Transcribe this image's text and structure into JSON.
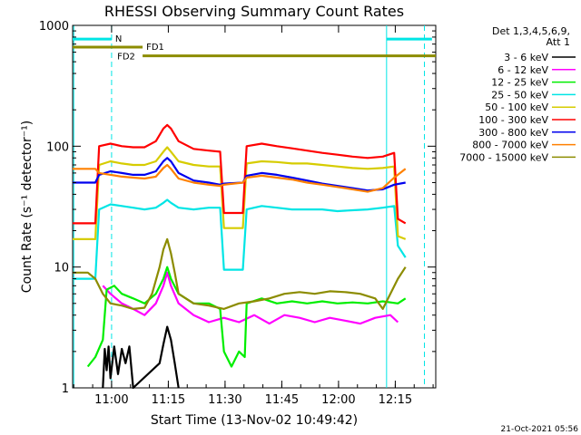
{
  "chart_data": {
    "type": "line",
    "title": "RHESSI Observing Summary Count Rates",
    "xlabel": "Start Time (13-Nov-02 10:49:42)",
    "ylabel": "Count Rate (s⁻¹ detector⁻¹)",
    "ylim": [
      1,
      1000
    ],
    "xlim": [
      0,
      96
    ],
    "x_unit": "minutes after 10:49:42",
    "yscale": "log",
    "x_ticks": [
      {
        "label": "11:00",
        "value": 10.3
      },
      {
        "label": "11:15",
        "value": 25.3
      },
      {
        "label": "11:30",
        "value": 40.3
      },
      {
        "label": "11:45",
        "value": 55.3
      },
      {
        "label": "12:00",
        "value": 70.3
      },
      {
        "label": "12:15",
        "value": 85.3
      }
    ],
    "y_ticks": [
      {
        "label": "1",
        "value": 1
      },
      {
        "label": "10",
        "value": 10
      },
      {
        "label": "100",
        "value": 100
      },
      {
        "label": "1000",
        "value": 1000
      }
    ],
    "legend_header": [
      "Det 1,3,4,5,6,9,",
      "Att 1"
    ],
    "legend_placement": "right",
    "footer_date": "21-Oct-2021 05:56",
    "series": [
      {
        "name": "3 - 6 keV",
        "color": "#000000",
        "points": [
          [
            8,
            1
          ],
          [
            8.5,
            2.1
          ],
          [
            9,
            1.4
          ],
          [
            9.5,
            2.2
          ],
          [
            10,
            1.2
          ],
          [
            11,
            2.2
          ],
          [
            12,
            1.3
          ],
          [
            13,
            2.1
          ],
          [
            14,
            1.6
          ],
          [
            15,
            2.2
          ],
          [
            16,
            1.0
          ],
          [
            23,
            1.6
          ],
          [
            24,
            2.3
          ],
          [
            25,
            3.2
          ],
          [
            26,
            2.5
          ],
          [
            27,
            1.6
          ],
          [
            28,
            1.0
          ]
        ]
      },
      {
        "name": "6 - 12 keV",
        "color": "#ff00ff",
        "points": [
          [
            8,
            7
          ],
          [
            10,
            6
          ],
          [
            13,
            5
          ],
          [
            16,
            4.5
          ],
          [
            19,
            4
          ],
          [
            22,
            5
          ],
          [
            24,
            7
          ],
          [
            25,
            9
          ],
          [
            26,
            7
          ],
          [
            28,
            5
          ],
          [
            32,
            4
          ],
          [
            36,
            3.5
          ],
          [
            40,
            3.8
          ],
          [
            44,
            3.5
          ],
          [
            48,
            4
          ],
          [
            52,
            3.4
          ],
          [
            56,
            4
          ],
          [
            60,
            3.8
          ],
          [
            64,
            3.5
          ],
          [
            68,
            3.8
          ],
          [
            72,
            3.6
          ],
          [
            76,
            3.4
          ],
          [
            80,
            3.8
          ],
          [
            84,
            4
          ],
          [
            86,
            3.5
          ]
        ]
      },
      {
        "name": "12 - 25 keV",
        "color": "#00ee00",
        "points": [
          [
            4,
            1.5
          ],
          [
            6,
            1.8
          ],
          [
            8,
            2.5
          ],
          [
            9,
            6.5
          ],
          [
            11,
            7
          ],
          [
            13,
            6
          ],
          [
            16,
            5.5
          ],
          [
            19,
            5
          ],
          [
            22,
            6
          ],
          [
            24,
            8
          ],
          [
            25,
            10
          ],
          [
            26,
            8
          ],
          [
            28,
            6
          ],
          [
            32,
            5
          ],
          [
            36,
            5
          ],
          [
            39,
            4.5
          ],
          [
            40,
            2
          ],
          [
            42,
            1.5
          ],
          [
            44,
            2
          ],
          [
            45.5,
            1.8
          ],
          [
            46,
            5
          ],
          [
            50,
            5.5
          ],
          [
            54,
            5
          ],
          [
            58,
            5.2
          ],
          [
            62,
            5
          ],
          [
            66,
            5.2
          ],
          [
            70,
            5
          ],
          [
            74,
            5.1
          ],
          [
            78,
            5
          ],
          [
            82,
            5.2
          ],
          [
            86,
            5
          ],
          [
            88,
            5.5
          ]
        ]
      },
      {
        "name": "25 - 50 keV",
        "color": "#00e5e5",
        "points": [
          [
            0,
            8
          ],
          [
            5,
            8
          ],
          [
            6,
            8
          ],
          [
            7,
            30
          ],
          [
            10,
            33
          ],
          [
            13,
            32
          ],
          [
            16,
            31
          ],
          [
            19,
            30
          ],
          [
            22,
            31
          ],
          [
            24,
            34
          ],
          [
            25,
            36
          ],
          [
            26,
            34
          ],
          [
            28,
            31
          ],
          [
            32,
            30
          ],
          [
            36,
            31
          ],
          [
            39,
            31
          ],
          [
            40,
            9.5
          ],
          [
            45,
            9.5
          ],
          [
            46,
            30
          ],
          [
            50,
            32
          ],
          [
            54,
            31
          ],
          [
            58,
            30
          ],
          [
            62,
            30
          ],
          [
            66,
            30
          ],
          [
            70,
            29
          ],
          [
            74,
            29.5
          ],
          [
            78,
            30
          ],
          [
            82,
            31
          ],
          [
            85,
            32
          ],
          [
            86,
            15
          ],
          [
            88,
            12
          ]
        ]
      },
      {
        "name": "50 - 100 keV",
        "color": "#d6cc00",
        "points": [
          [
            0,
            17
          ],
          [
            5,
            17
          ],
          [
            6,
            17
          ],
          [
            7,
            70
          ],
          [
            10,
            75
          ],
          [
            13,
            72
          ],
          [
            16,
            70
          ],
          [
            19,
            70
          ],
          [
            22,
            75
          ],
          [
            24,
            90
          ],
          [
            25,
            98
          ],
          [
            26,
            90
          ],
          [
            28,
            75
          ],
          [
            32,
            70
          ],
          [
            36,
            68
          ],
          [
            39,
            68
          ],
          [
            40,
            21
          ],
          [
            45,
            21
          ],
          [
            46,
            72
          ],
          [
            50,
            75
          ],
          [
            54,
            74
          ],
          [
            58,
            72
          ],
          [
            62,
            72
          ],
          [
            66,
            70
          ],
          [
            70,
            68
          ],
          [
            74,
            66
          ],
          [
            78,
            65
          ],
          [
            82,
            66
          ],
          [
            85,
            68
          ],
          [
            86,
            18
          ],
          [
            88,
            17
          ]
        ]
      },
      {
        "name": "100 - 300 keV",
        "color": "#ff0000",
        "points": [
          [
            0,
            23
          ],
          [
            5,
            23
          ],
          [
            6,
            23
          ],
          [
            7,
            100
          ],
          [
            10,
            105
          ],
          [
            13,
            100
          ],
          [
            16,
            98
          ],
          [
            19,
            98
          ],
          [
            22,
            110
          ],
          [
            24,
            140
          ],
          [
            25,
            150
          ],
          [
            26,
            140
          ],
          [
            28,
            110
          ],
          [
            32,
            95
          ],
          [
            36,
            92
          ],
          [
            39,
            90
          ],
          [
            40,
            28
          ],
          [
            45,
            28
          ],
          [
            46,
            100
          ],
          [
            50,
            105
          ],
          [
            54,
            100
          ],
          [
            58,
            96
          ],
          [
            62,
            92
          ],
          [
            66,
            88
          ],
          [
            70,
            85
          ],
          [
            74,
            82
          ],
          [
            78,
            80
          ],
          [
            82,
            82
          ],
          [
            85,
            88
          ],
          [
            86,
            25
          ],
          [
            88,
            23
          ]
        ]
      },
      {
        "name": "300 - 800 keV",
        "color": "#0000ee",
        "points": [
          [
            0,
            50
          ],
          [
            5,
            50
          ],
          [
            6,
            50
          ],
          [
            7,
            58
          ],
          [
            10,
            62
          ],
          [
            13,
            60
          ],
          [
            16,
            58
          ],
          [
            19,
            58
          ],
          [
            22,
            62
          ],
          [
            24,
            75
          ],
          [
            25,
            80
          ],
          [
            26,
            75
          ],
          [
            28,
            60
          ],
          [
            32,
            52
          ],
          [
            36,
            50
          ],
          [
            39,
            48
          ],
          [
            40,
            49
          ],
          [
            45,
            50
          ],
          [
            46,
            57
          ],
          [
            50,
            60
          ],
          [
            54,
            58
          ],
          [
            58,
            55
          ],
          [
            62,
            52
          ],
          [
            66,
            49
          ],
          [
            70,
            47
          ],
          [
            74,
            45
          ],
          [
            78,
            43
          ],
          [
            82,
            44
          ],
          [
            85,
            48
          ],
          [
            88,
            50
          ]
        ]
      },
      {
        "name": "800 - 7000 keV",
        "color": "#ff8000",
        "points": [
          [
            0,
            65
          ],
          [
            5,
            65
          ],
          [
            6,
            65
          ],
          [
            7,
            60
          ],
          [
            10,
            58
          ],
          [
            13,
            56
          ],
          [
            16,
            55
          ],
          [
            19,
            54
          ],
          [
            22,
            56
          ],
          [
            24,
            66
          ],
          [
            25,
            70
          ],
          [
            26,
            65
          ],
          [
            28,
            54
          ],
          [
            32,
            50
          ],
          [
            36,
            48
          ],
          [
            39,
            47
          ],
          [
            40,
            48
          ],
          [
            45,
            50
          ],
          [
            46,
            55
          ],
          [
            50,
            57
          ],
          [
            54,
            55
          ],
          [
            58,
            53
          ],
          [
            62,
            50
          ],
          [
            66,
            48
          ],
          [
            70,
            46
          ],
          [
            74,
            44
          ],
          [
            78,
            42
          ],
          [
            82,
            45
          ],
          [
            85,
            55
          ],
          [
            88,
            65
          ]
        ]
      },
      {
        "name": "7000 - 15000 keV",
        "color": "#8c8c00",
        "points": [
          [
            0,
            9
          ],
          [
            4,
            9
          ],
          [
            6,
            8
          ],
          [
            8,
            6
          ],
          [
            10,
            5
          ],
          [
            13,
            4.8
          ],
          [
            16,
            4.5
          ],
          [
            19,
            4.6
          ],
          [
            21,
            6
          ],
          [
            23,
            10
          ],
          [
            24,
            14
          ],
          [
            25,
            17
          ],
          [
            26,
            13
          ],
          [
            27,
            9
          ],
          [
            28,
            6
          ],
          [
            32,
            5
          ],
          [
            36,
            4.8
          ],
          [
            40,
            4.5
          ],
          [
            44,
            5
          ],
          [
            48,
            5.2
          ],
          [
            52,
            5.5
          ],
          [
            56,
            6
          ],
          [
            60,
            6.2
          ],
          [
            64,
            6
          ],
          [
            68,
            6.3
          ],
          [
            72,
            6.2
          ],
          [
            76,
            6
          ],
          [
            80,
            5.5
          ],
          [
            82,
            4.5
          ],
          [
            84,
            6
          ],
          [
            86,
            8
          ],
          [
            88,
            10
          ]
        ]
      }
    ],
    "annotations": [
      {
        "text": "N",
        "color": "#00e5e5",
        "x_start": 0,
        "x_end": 10.3,
        "y": 770
      },
      {
        "text": "FD1",
        "color": "#8c8c00",
        "x_start": 0,
        "x_end": 18.5,
        "y": 660
      },
      {
        "text": "FD2",
        "color": "#8c8c00",
        "x_start": 18.5,
        "x_end": 96,
        "y": 560
      }
    ],
    "night_bar_right": {
      "color": "#00e5e5",
      "x_start": 83,
      "x_end": 95,
      "y": 770
    },
    "vertical_lines": [
      {
        "x": 0.3,
        "style": "solid",
        "color": "#00e5e5"
      },
      {
        "x": 10.3,
        "style": "dashed",
        "color": "#00e5e5"
      },
      {
        "x": 83.0,
        "style": "solid",
        "color": "#00e5e5"
      },
      {
        "x": 93.0,
        "style": "dashed",
        "color": "#00e5e5"
      }
    ]
  }
}
